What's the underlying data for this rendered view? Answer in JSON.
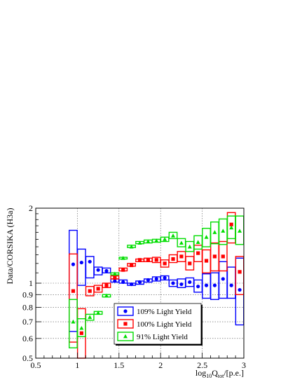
{
  "chart_data": {
    "type": "scatter",
    "ylabel": "Data/CORSIKA (H3a)",
    "xlabel": {
      "prefix": "log",
      "base": "10",
      "symbol": "Q",
      "subscript": "tot",
      "suffix": "/[p.e.]"
    },
    "xlim": [
      0.5,
      3.0
    ],
    "ylim": [
      0.5,
      2.0
    ],
    "y_log": true,
    "grid": true,
    "legend_position": "bottom-center",
    "x_ticks": [
      0.5,
      1,
      1.5,
      2,
      2.5,
      3
    ],
    "x_tick_labels": [
      "0.5",
      "1",
      "1.5",
      "2",
      "2.5",
      "3"
    ],
    "y_ticks": [
      0.5,
      0.6,
      0.7,
      0.8,
      0.9,
      1,
      2
    ],
    "y_tick_labels": [
      "0.5",
      "0.6",
      "0.7",
      "0.8",
      "0.9",
      "1",
      "2"
    ],
    "series": [
      {
        "name": "109% Light Yield",
        "color": "#0000ff",
        "marker": "circle",
        "points": [
          {
            "x": 0.95,
            "y": 1.19,
            "lo": 0.64,
            "hi": 1.63
          },
          {
            "x": 1.05,
            "y": 1.21,
            "lo": 0.98,
            "hi": 1.37
          },
          {
            "x": 1.15,
            "y": 1.22,
            "lo": 1.05,
            "hi": 1.28
          },
          {
            "x": 1.25,
            "y": 1.13,
            "lo": 1.08,
            "hi": 1.16
          },
          {
            "x": 1.35,
            "y": 1.12,
            "lo": 1.1,
            "hi": 1.15
          },
          {
            "x": 1.45,
            "y": 1.02,
            "lo": 1.01,
            "hi": 1.04
          },
          {
            "x": 1.55,
            "y": 1.01,
            "lo": 1.0,
            "hi": 1.03
          },
          {
            "x": 1.65,
            "y": 0.99,
            "lo": 0.98,
            "hi": 1.0
          },
          {
            "x": 1.75,
            "y": 1.01,
            "lo": 0.99,
            "hi": 1.02
          },
          {
            "x": 1.85,
            "y": 1.03,
            "lo": 1.01,
            "hi": 1.04
          },
          {
            "x": 1.95,
            "y": 1.04,
            "lo": 1.02,
            "hi": 1.06
          },
          {
            "x": 2.05,
            "y": 1.05,
            "lo": 1.03,
            "hi": 1.07
          },
          {
            "x": 2.15,
            "y": 1.0,
            "lo": 0.97,
            "hi": 1.03
          },
          {
            "x": 2.25,
            "y": 0.99,
            "lo": 0.96,
            "hi": 1.04
          },
          {
            "x": 2.35,
            "y": 1.01,
            "lo": 0.97,
            "hi": 1.05
          },
          {
            "x": 2.45,
            "y": 0.97,
            "lo": 0.92,
            "hi": 1.03
          },
          {
            "x": 2.55,
            "y": 0.98,
            "lo": 0.87,
            "hi": 1.09
          },
          {
            "x": 2.65,
            "y": 0.98,
            "lo": 0.86,
            "hi": 1.1
          },
          {
            "x": 2.75,
            "y": 1.04,
            "lo": 0.87,
            "hi": 1.22
          },
          {
            "x": 2.85,
            "y": 0.98,
            "lo": 0.87,
            "hi": 1.16
          },
          {
            "x": 2.95,
            "y": 0.94,
            "lo": 0.68,
            "hi": 1.26
          }
        ]
      },
      {
        "name": "100% Light Yield",
        "color": "#ff0000",
        "marker": "square",
        "points": [
          {
            "x": 0.95,
            "y": 0.93,
            "lo": 0.58,
            "hi": 1.31
          },
          {
            "x": 1.05,
            "y": 0.63,
            "lo": 0.48,
            "hi": 0.79
          },
          {
            "x": 1.15,
            "y": 0.93,
            "lo": 0.89,
            "hi": 0.97
          },
          {
            "x": 1.25,
            "y": 0.95,
            "lo": 0.92,
            "hi": 0.98
          },
          {
            "x": 1.35,
            "y": 0.98,
            "lo": 0.96,
            "hi": 1.0
          },
          {
            "x": 1.45,
            "y": 1.05,
            "lo": 1.04,
            "hi": 1.07
          },
          {
            "x": 1.55,
            "y": 1.13,
            "lo": 1.12,
            "hi": 1.15
          },
          {
            "x": 1.65,
            "y": 1.18,
            "lo": 1.17,
            "hi": 1.2
          },
          {
            "x": 1.75,
            "y": 1.24,
            "lo": 1.22,
            "hi": 1.25
          },
          {
            "x": 1.85,
            "y": 1.24,
            "lo": 1.22,
            "hi": 1.26
          },
          {
            "x": 1.95,
            "y": 1.24,
            "lo": 1.21,
            "hi": 1.27
          },
          {
            "x": 2.05,
            "y": 1.2,
            "lo": 1.16,
            "hi": 1.24
          },
          {
            "x": 2.15,
            "y": 1.25,
            "lo": 1.21,
            "hi": 1.3
          },
          {
            "x": 2.25,
            "y": 1.28,
            "lo": 1.22,
            "hi": 1.34
          },
          {
            "x": 2.35,
            "y": 1.2,
            "lo": 1.13,
            "hi": 1.28
          },
          {
            "x": 2.45,
            "y": 1.32,
            "lo": 1.22,
            "hi": 1.42
          },
          {
            "x": 2.55,
            "y": 1.23,
            "lo": 1.1,
            "hi": 1.36
          },
          {
            "x": 2.65,
            "y": 1.28,
            "lo": 1.12,
            "hi": 1.45
          },
          {
            "x": 2.75,
            "y": 1.28,
            "lo": 1.12,
            "hi": 1.47
          },
          {
            "x": 2.85,
            "y": 1.72,
            "lo": 1.45,
            "hi": 1.92
          },
          {
            "x": 2.95,
            "y": 1.11,
            "lo": 0.9,
            "hi": 1.28
          }
        ]
      },
      {
        "name": "91% Light Yield",
        "color": "#00dd00",
        "marker": "triangle",
        "points": [
          {
            "x": 0.95,
            "y": 0.7,
            "lo": 0.55,
            "hi": 0.86
          },
          {
            "x": 1.05,
            "y": 0.66,
            "lo": 0.61,
            "hi": 0.72
          },
          {
            "x": 1.15,
            "y": 0.73,
            "lo": 0.71,
            "hi": 0.75
          },
          {
            "x": 1.25,
            "y": 0.76,
            "lo": 0.75,
            "hi": 0.77
          },
          {
            "x": 1.35,
            "y": 0.89,
            "lo": 0.88,
            "hi": 0.9
          },
          {
            "x": 1.45,
            "y": 1.09,
            "lo": 1.08,
            "hi": 1.1
          },
          {
            "x": 1.55,
            "y": 1.26,
            "lo": 1.25,
            "hi": 1.27
          },
          {
            "x": 1.65,
            "y": 1.4,
            "lo": 1.39,
            "hi": 1.42
          },
          {
            "x": 1.75,
            "y": 1.45,
            "lo": 1.44,
            "hi": 1.47
          },
          {
            "x": 1.85,
            "y": 1.47,
            "lo": 1.45,
            "hi": 1.49
          },
          {
            "x": 1.95,
            "y": 1.48,
            "lo": 1.46,
            "hi": 1.5
          },
          {
            "x": 2.05,
            "y": 1.5,
            "lo": 1.47,
            "hi": 1.53
          },
          {
            "x": 2.15,
            "y": 1.55,
            "lo": 1.51,
            "hi": 1.6
          },
          {
            "x": 2.25,
            "y": 1.45,
            "lo": 1.4,
            "hi": 1.51
          },
          {
            "x": 2.35,
            "y": 1.4,
            "lo": 1.34,
            "hi": 1.47
          },
          {
            "x": 2.45,
            "y": 1.46,
            "lo": 1.37,
            "hi": 1.55
          },
          {
            "x": 2.55,
            "y": 1.53,
            "lo": 1.4,
            "hi": 1.66
          },
          {
            "x": 2.65,
            "y": 1.6,
            "lo": 1.44,
            "hi": 1.76
          },
          {
            "x": 2.75,
            "y": 1.62,
            "lo": 1.43,
            "hi": 1.81
          },
          {
            "x": 2.85,
            "y": 1.67,
            "lo": 1.51,
            "hi": 1.86
          },
          {
            "x": 2.95,
            "y": 1.62,
            "lo": 1.43,
            "hi": 1.86
          }
        ]
      }
    ]
  }
}
